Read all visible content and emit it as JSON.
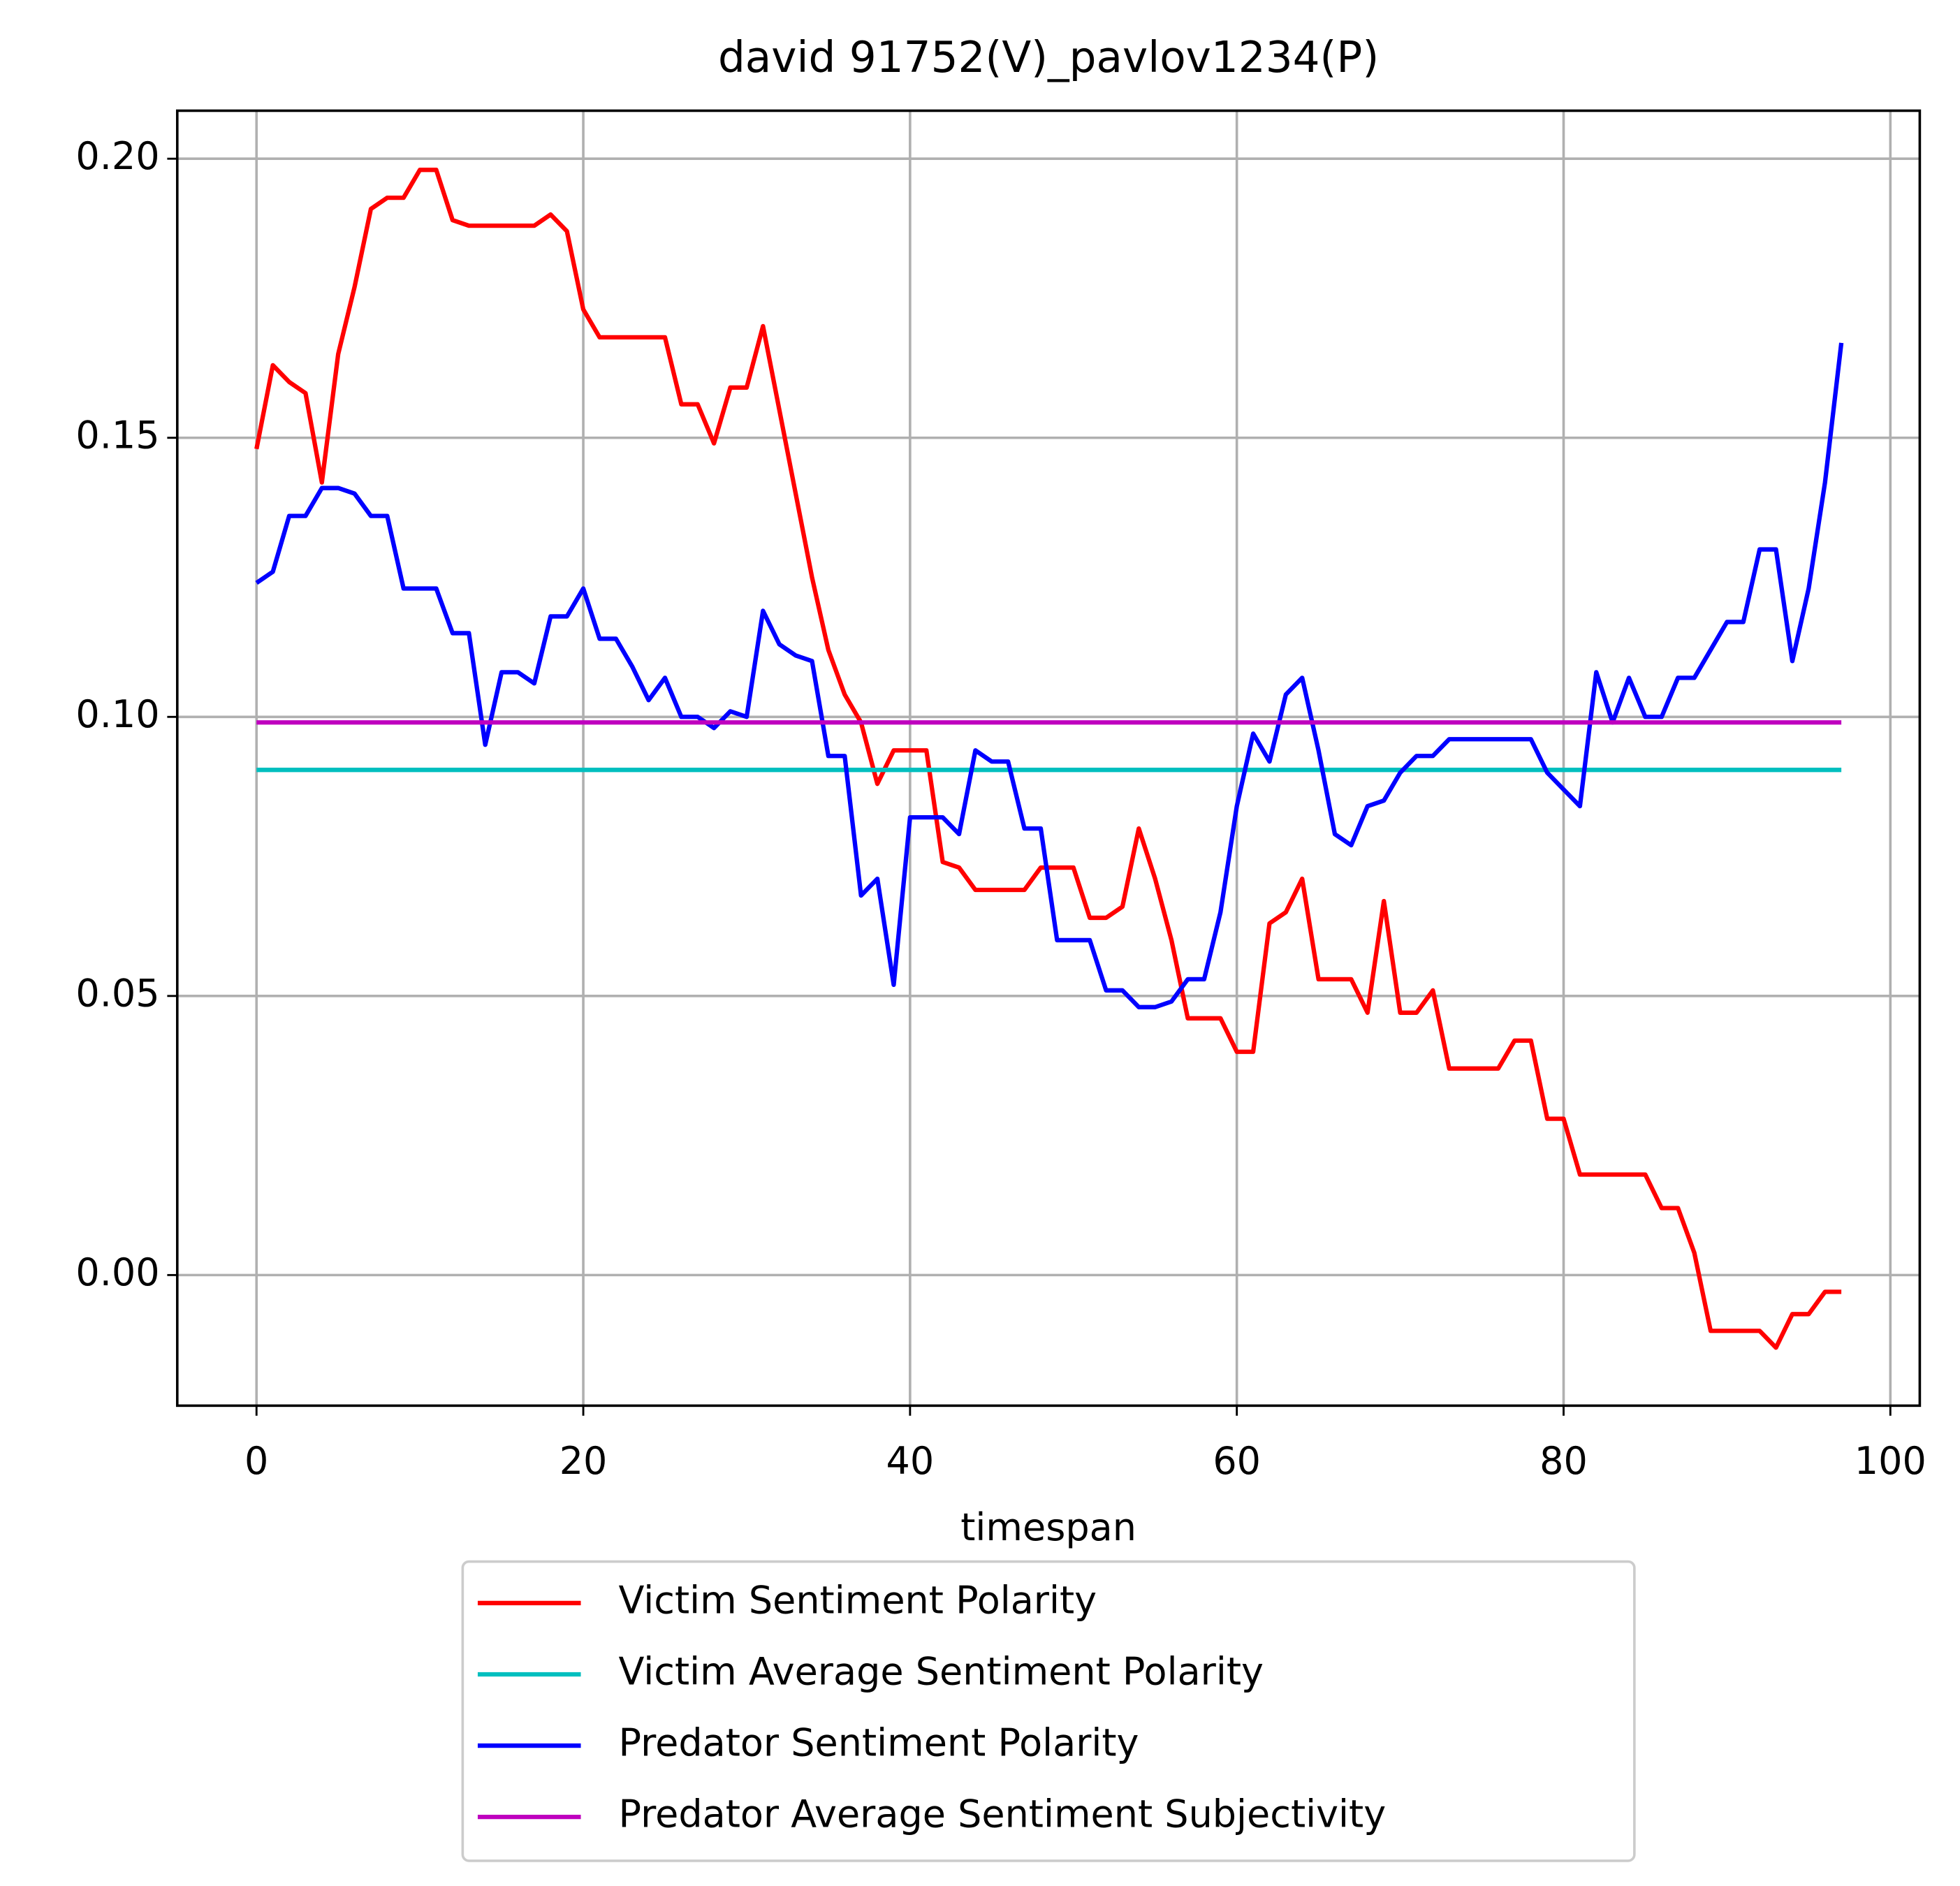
{
  "chart_data": {
    "type": "line",
    "title": "david 91752(V)_pavlov1234(P)",
    "x_label": "timespan",
    "x": [
      0,
      1,
      2,
      3,
      4,
      5,
      6,
      7,
      8,
      9,
      10,
      11,
      12,
      13,
      14,
      15,
      16,
      17,
      18,
      19,
      20,
      21,
      22,
      23,
      24,
      25,
      26,
      27,
      28,
      29,
      30,
      31,
      32,
      33,
      34,
      35,
      36,
      37,
      38,
      39,
      40,
      41,
      42,
      43,
      44,
      45,
      46,
      47,
      48,
      49,
      50,
      51,
      52,
      53,
      54,
      55,
      56,
      57,
      58,
      59,
      60,
      61,
      62,
      63,
      64,
      65,
      66,
      67,
      68,
      69,
      70,
      71,
      72,
      73,
      74,
      75,
      76,
      77,
      78,
      79,
      80,
      81,
      82,
      83,
      84,
      85,
      86,
      87,
      88,
      89,
      90,
      91,
      92,
      93,
      94,
      95,
      96,
      97
    ],
    "series": [
      {
        "name": "Victim Sentiment Polarity",
        "color": "#ff0000",
        "values": [
          0.148,
          0.163,
          0.16,
          0.158,
          0.142,
          0.165,
          0.177,
          0.191,
          0.193,
          0.193,
          0.198,
          0.198,
          0.189,
          0.188,
          0.188,
          0.188,
          0.188,
          0.188,
          0.19,
          0.187,
          0.173,
          0.168,
          0.168,
          0.168,
          0.168,
          0.168,
          0.156,
          0.156,
          0.149,
          0.159,
          0.159,
          0.17,
          0.155,
          0.14,
          0.125,
          0.112,
          0.104,
          0.099,
          0.088,
          0.094,
          0.094,
          0.094,
          0.074,
          0.073,
          0.069,
          0.069,
          0.069,
          0.069,
          0.073,
          0.073,
          0.073,
          0.064,
          0.064,
          0.066,
          0.08,
          0.071,
          0.06,
          0.046,
          0.046,
          0.046,
          0.04,
          0.04,
          0.063,
          0.065,
          0.071,
          0.053,
          0.053,
          0.053,
          0.047,
          0.067,
          0.047,
          0.047,
          0.051,
          0.037,
          0.037,
          0.037,
          0.037,
          0.042,
          0.042,
          0.028,
          0.028,
          0.018,
          0.018,
          0.018,
          0.018,
          0.018,
          0.012,
          0.012,
          0.004,
          -0.01,
          -0.01,
          -0.01,
          -0.01,
          -0.013,
          -0.007,
          -0.007,
          -0.003,
          -0.003
        ]
      },
      {
        "name": "Victim Average Sentiment Polarity",
        "color": "#00bfbf",
        "values": [
          0.0905,
          0.0905,
          0.0905,
          0.0905,
          0.0905,
          0.0905,
          0.0905,
          0.0905,
          0.0905,
          0.0905,
          0.0905,
          0.0905,
          0.0905,
          0.0905,
          0.0905,
          0.0905,
          0.0905,
          0.0905,
          0.0905,
          0.0905,
          0.0905,
          0.0905,
          0.0905,
          0.0905,
          0.0905,
          0.0905,
          0.0905,
          0.0905,
          0.0905,
          0.0905,
          0.0905,
          0.0905,
          0.0905,
          0.0905,
          0.0905,
          0.0905,
          0.0905,
          0.0905,
          0.0905,
          0.0905,
          0.0905,
          0.0905,
          0.0905,
          0.0905,
          0.0905,
          0.0905,
          0.0905,
          0.0905,
          0.0905,
          0.0905,
          0.0905,
          0.0905,
          0.0905,
          0.0905,
          0.0905,
          0.0905,
          0.0905,
          0.0905,
          0.0905,
          0.0905,
          0.0905,
          0.0905,
          0.0905,
          0.0905,
          0.0905,
          0.0905,
          0.0905,
          0.0905,
          0.0905,
          0.0905,
          0.0905,
          0.0905,
          0.0905,
          0.0905,
          0.0905,
          0.0905,
          0.0905,
          0.0905,
          0.0905,
          0.0905,
          0.0905,
          0.0905,
          0.0905,
          0.0905,
          0.0905,
          0.0905,
          0.0905,
          0.0905,
          0.0905,
          0.0905,
          0.0905,
          0.0905,
          0.0905,
          0.0905,
          0.0905,
          0.0905,
          0.0905,
          0.0905
        ]
      },
      {
        "name": "Predator Sentiment Polarity",
        "color": "#0000ff",
        "values": [
          0.124,
          0.126,
          0.136,
          0.136,
          0.141,
          0.141,
          0.14,
          0.136,
          0.136,
          0.123,
          0.123,
          0.123,
          0.115,
          0.115,
          0.095,
          0.108,
          0.108,
          0.106,
          0.118,
          0.118,
          0.123,
          0.114,
          0.114,
          0.109,
          0.103,
          0.107,
          0.1,
          0.1,
          0.098,
          0.101,
          0.1,
          0.119,
          0.113,
          0.111,
          0.11,
          0.093,
          0.093,
          0.068,
          0.071,
          0.052,
          0.082,
          0.082,
          0.082,
          0.079,
          0.094,
          0.092,
          0.092,
          0.08,
          0.08,
          0.06,
          0.06,
          0.06,
          0.051,
          0.051,
          0.048,
          0.048,
          0.049,
          0.053,
          0.053,
          0.065,
          0.084,
          0.097,
          0.092,
          0.104,
          0.107,
          0.094,
          0.079,
          0.077,
          0.084,
          0.085,
          0.09,
          0.093,
          0.093,
          0.096,
          0.096,
          0.096,
          0.096,
          0.096,
          0.096,
          0.09,
          0.087,
          0.084,
          0.108,
          0.099,
          0.107,
          0.1,
          0.1,
          0.107,
          0.107,
          0.112,
          0.117,
          0.117,
          0.13,
          0.13,
          0.11,
          0.123,
          0.142,
          0.167
        ]
      },
      {
        "name": "Predator Average Sentiment Subjectivity",
        "color": "#bf00bf",
        "values": [
          0.099,
          0.099,
          0.099,
          0.099,
          0.099,
          0.099,
          0.099,
          0.099,
          0.099,
          0.099,
          0.099,
          0.099,
          0.099,
          0.099,
          0.099,
          0.099,
          0.099,
          0.099,
          0.099,
          0.099,
          0.099,
          0.099,
          0.099,
          0.099,
          0.099,
          0.099,
          0.099,
          0.099,
          0.099,
          0.099,
          0.099,
          0.099,
          0.099,
          0.099,
          0.099,
          0.099,
          0.099,
          0.099,
          0.099,
          0.099,
          0.099,
          0.099,
          0.099,
          0.099,
          0.099,
          0.099,
          0.099,
          0.099,
          0.099,
          0.099,
          0.099,
          0.099,
          0.099,
          0.099,
          0.099,
          0.099,
          0.099,
          0.099,
          0.099,
          0.099,
          0.099,
          0.099,
          0.099,
          0.099,
          0.099,
          0.099,
          0.099,
          0.099,
          0.099,
          0.099,
          0.099,
          0.099,
          0.099,
          0.099,
          0.099,
          0.099,
          0.099,
          0.099,
          0.099,
          0.099,
          0.099,
          0.099,
          0.099,
          0.099,
          0.099,
          0.099,
          0.099,
          0.099,
          0.099,
          0.099,
          0.099,
          0.099,
          0.099,
          0.099,
          0.099,
          0.099,
          0.099,
          0.099
        ]
      }
    ],
    "xlim": [
      -4.85,
      101.8
    ],
    "xticks": [
      0,
      20,
      40,
      60,
      80,
      100
    ],
    "ylim": [
      -0.0234,
      0.2086
    ],
    "yticks": [
      {
        "value": 0,
        "label": "0.00"
      },
      {
        "value": 0.05,
        "label": "0.05"
      },
      {
        "value": 0.1,
        "label": "0.10"
      },
      {
        "value": 0.15,
        "label": "0.15"
      },
      {
        "value": 0.2,
        "label": "0.20"
      }
    ],
    "grid": true,
    "legend": "below"
  }
}
